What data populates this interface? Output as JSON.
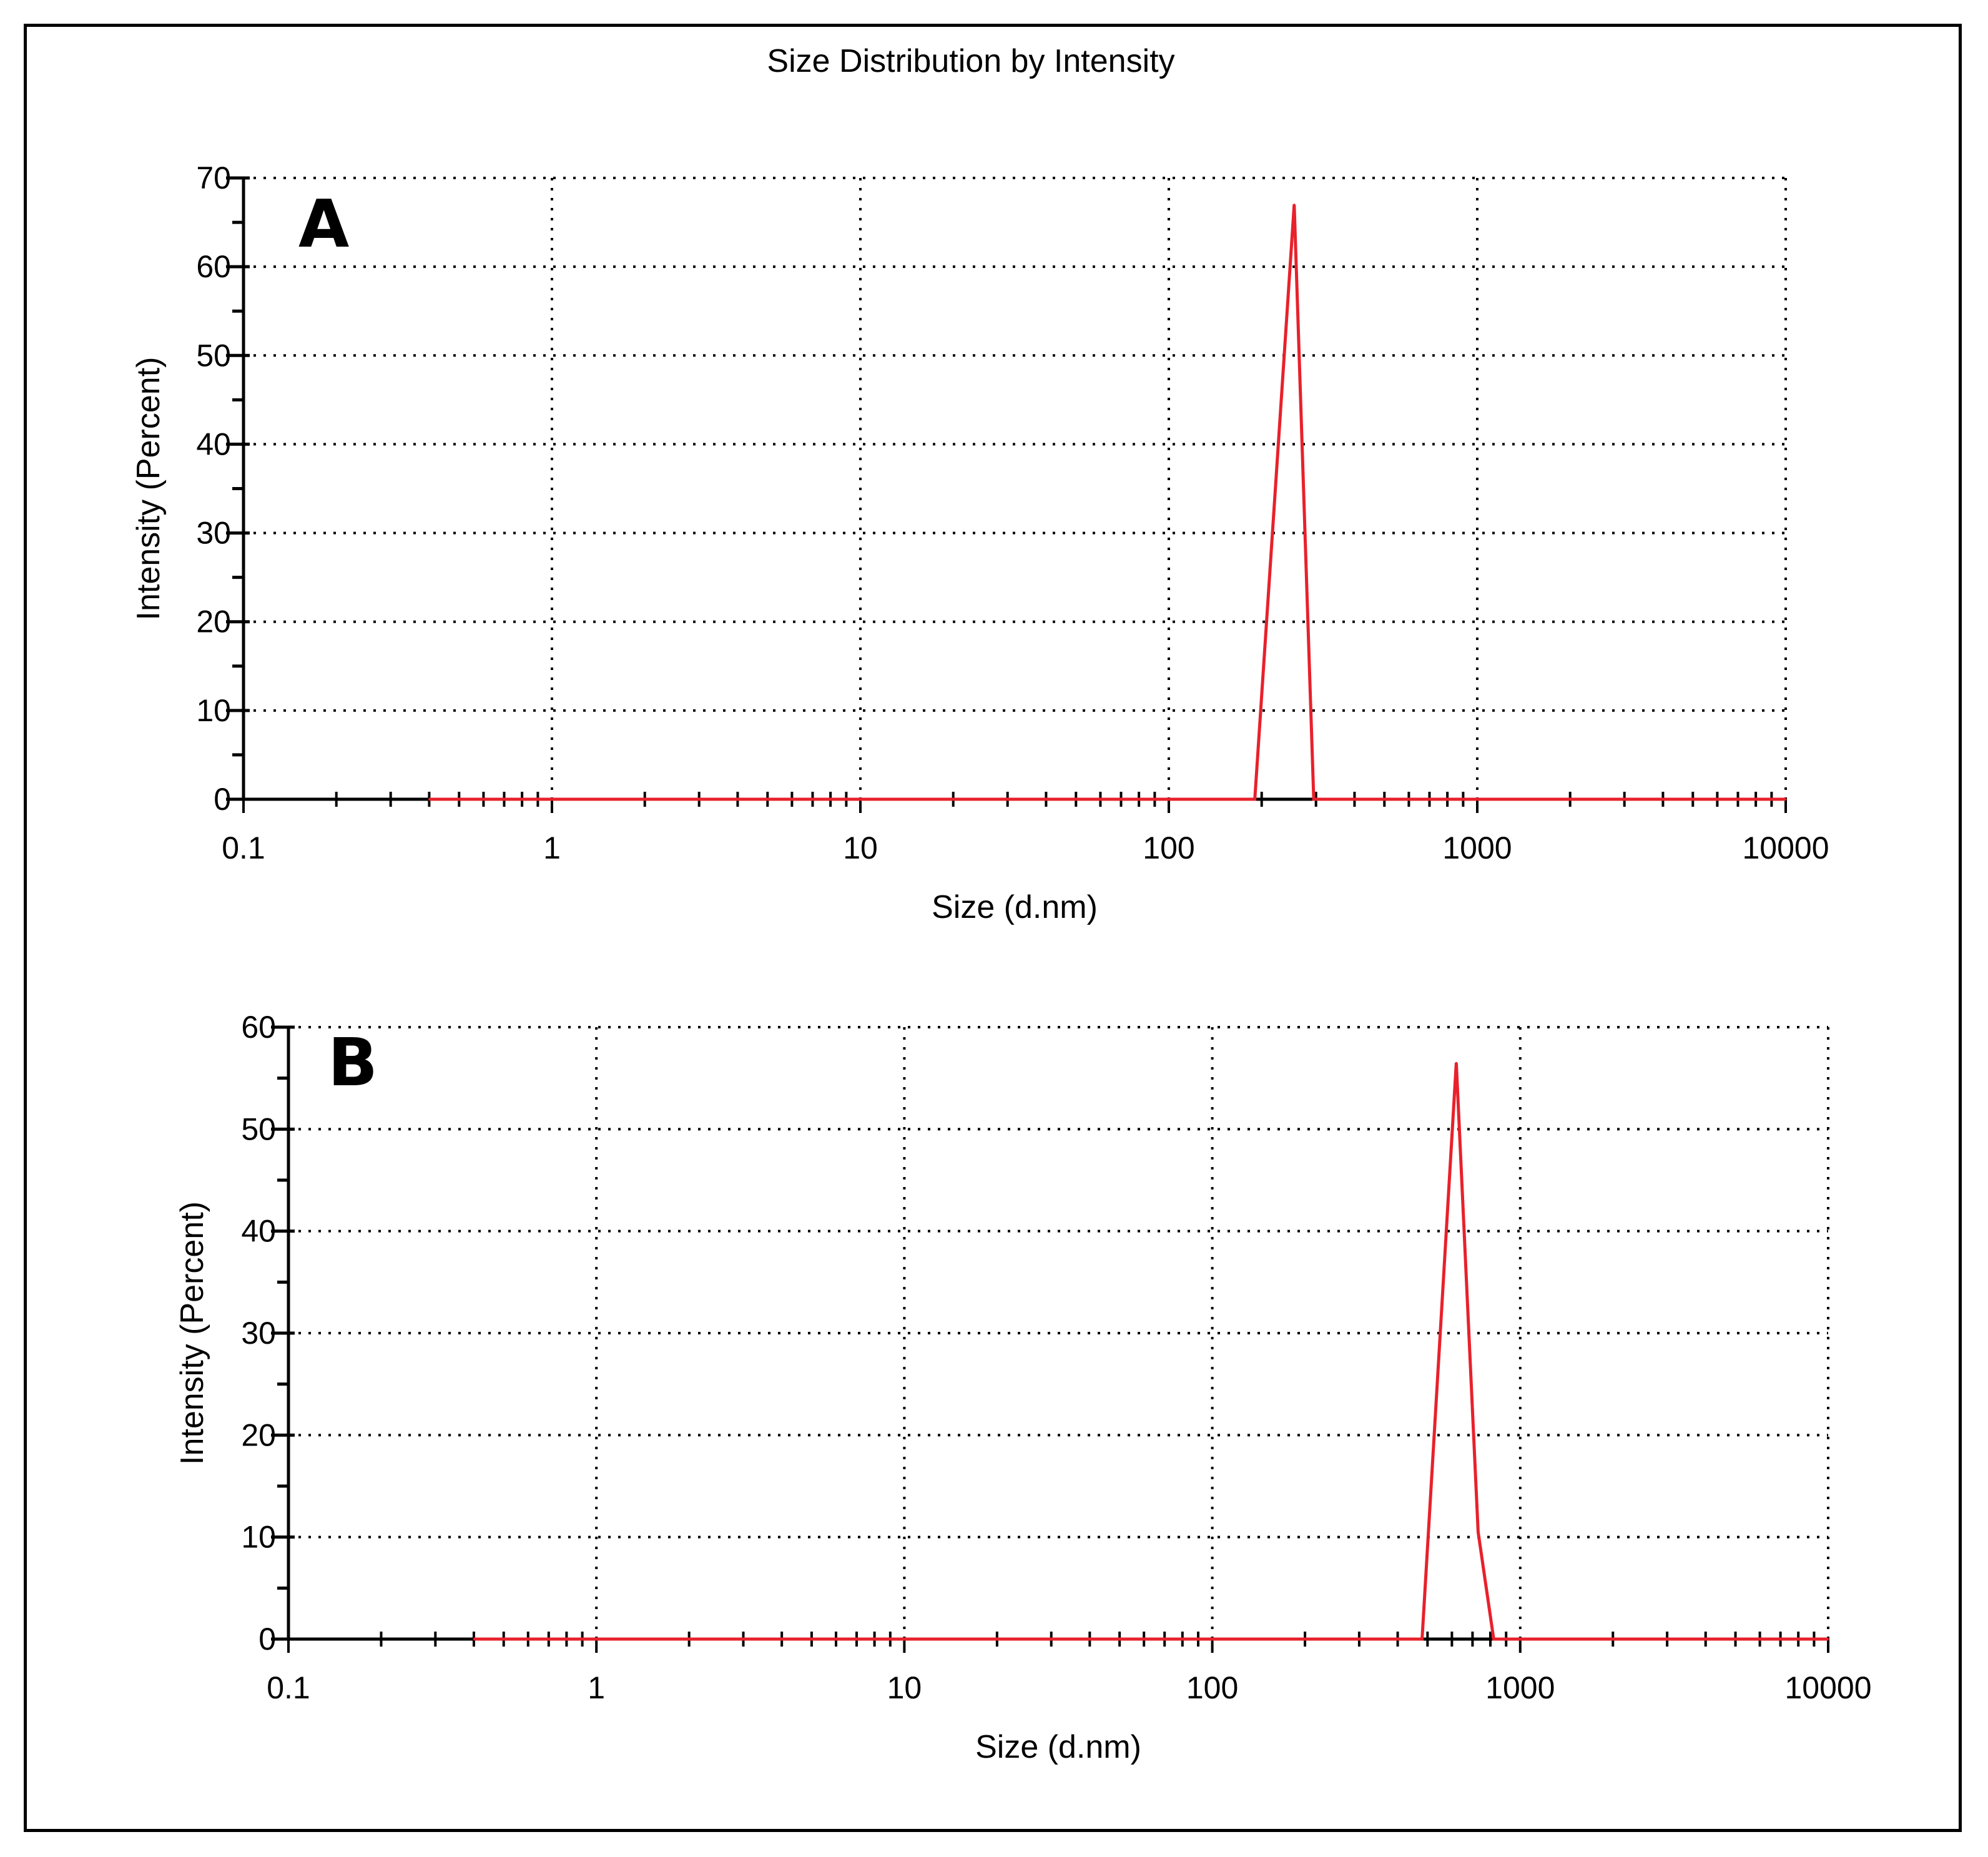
{
  "chart_data": [
    {
      "type": "line",
      "panel_label": "A",
      "title": "Size Distribution by Intensity",
      "xlabel": "Size (d.nm)",
      "ylabel": "Intensity (Percent)",
      "xscale": "log",
      "xlim": [
        0.1,
        10000
      ],
      "ylim": [
        0,
        70
      ],
      "xticks": [
        0.1,
        1,
        10,
        100,
        1000,
        10000
      ],
      "xtick_labels": [
        "0.1",
        "1",
        "10",
        "100",
        "1000",
        "10000"
      ],
      "yticks": [
        0,
        10,
        20,
        30,
        40,
        50,
        60,
        70
      ],
      "ytick_labels": [
        "0",
        "10",
        "20",
        "30",
        "40",
        "50",
        "60",
        "70"
      ],
      "grid": true,
      "colors": {
        "series": "#e8212b",
        "grid": "#000000"
      },
      "series": [
        {
          "x": [
            0.4,
            190,
            255,
            295,
            10000
          ],
          "y": [
            0,
            0,
            67,
            0,
            0
          ]
        }
      ]
    },
    {
      "type": "line",
      "panel_label": "B",
      "title": "",
      "xlabel": "Size (d.nm)",
      "ylabel": "Intensity (Percent)",
      "xscale": "log",
      "xlim": [
        0.1,
        10000
      ],
      "ylim": [
        0,
        60
      ],
      "xticks": [
        0.1,
        1,
        10,
        100,
        1000,
        10000
      ],
      "xtick_labels": [
        "0.1",
        "1",
        "10",
        "100",
        "1000",
        "10000"
      ],
      "yticks": [
        0,
        10,
        20,
        30,
        40,
        50,
        60
      ],
      "ytick_labels": [
        "0",
        "10",
        "20",
        "30",
        "40",
        "50",
        "60"
      ],
      "grid": true,
      "colors": {
        "series": "#e8212b",
        "grid": "#000000"
      },
      "series": [
        {
          "x": [
            0.4,
            480,
            620,
            730,
            820,
            10000
          ],
          "y": [
            0,
            0,
            56.5,
            10.5,
            0,
            0
          ]
        }
      ]
    }
  ]
}
